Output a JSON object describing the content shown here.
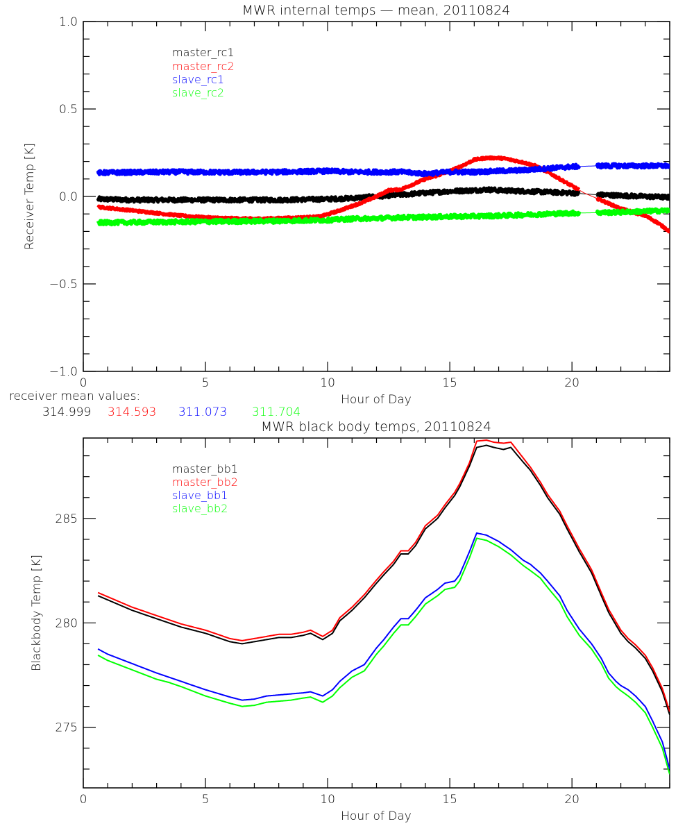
{
  "colors": {
    "black": "#000000",
    "red": "#ff0000",
    "blue": "#0000ff",
    "green": "#00ff00"
  },
  "receiver_mean": {
    "label": "receiver mean values:",
    "values": [
      {
        "text": "314.999",
        "color": "#000000"
      },
      {
        "text": "314.593",
        "color": "#ff0000"
      },
      {
        "text": "311.073",
        "color": "#0000ff"
      },
      {
        "text": "311.704",
        "color": "#00ff00"
      }
    ]
  },
  "chart_data": [
    {
      "type": "line",
      "title": "MWR internal temps — mean, 20110824",
      "xlabel": "Hour of Day",
      "ylabel": "Receiver Temp [K]",
      "xlim": [
        0,
        24
      ],
      "ylim": [
        -1.0,
        1.0
      ],
      "xticks": [
        0,
        5,
        10,
        15,
        20
      ],
      "xtick_labels": [
        "0",
        "5",
        "10",
        "15",
        "20"
      ],
      "yticks": [
        -1.0,
        -0.5,
        0.0,
        0.5,
        1.0
      ],
      "ytick_labels": [
        "−1.0",
        "−0.5",
        "0.0",
        "0.5",
        "1.0"
      ],
      "x_minor_step": 1,
      "y_minor_step": 0.1,
      "grid": false,
      "legend_position": "top-left",
      "noisy": true,
      "data_gap": [
        20.3,
        21.0
      ],
      "series": [
        {
          "name": "master_rc1",
          "color": "#000000",
          "x": [
            0.6,
            2,
            4,
            6,
            8,
            10,
            11,
            12,
            13,
            14,
            15,
            16,
            16.5,
            17,
            18,
            19,
            20,
            21,
            22,
            23,
            24
          ],
          "y": [
            -0.015,
            -0.02,
            -0.02,
            -0.02,
            -0.02,
            -0.015,
            -0.01,
            0.0,
            0.01,
            0.02,
            0.03,
            0.035,
            0.04,
            0.035,
            0.03,
            0.025,
            0.02,
            0.01,
            0.005,
            0.0,
            -0.005
          ]
        },
        {
          "name": "master_rc2",
          "color": "#ff0000",
          "x": [
            0.6,
            2,
            3,
            4,
            5,
            6,
            7,
            8,
            9,
            9.7,
            10.5,
            11,
            11.5,
            12,
            12.5,
            13,
            13.5,
            14,
            14.5,
            15,
            15.5,
            16,
            16.5,
            17,
            17.3,
            18,
            18.5,
            19,
            19.5,
            20,
            20.5,
            21,
            21.5,
            22,
            22.5,
            23,
            23.5,
            24
          ],
          "y": [
            -0.06,
            -0.08,
            -0.095,
            -0.11,
            -0.12,
            -0.125,
            -0.128,
            -0.125,
            -0.12,
            -0.115,
            -0.08,
            -0.055,
            -0.03,
            0.0,
            0.035,
            0.04,
            0.07,
            0.1,
            0.12,
            0.145,
            0.175,
            0.21,
            0.22,
            0.22,
            0.215,
            0.195,
            0.175,
            0.14,
            0.1,
            0.06,
            0.02,
            -0.01,
            -0.04,
            -0.07,
            -0.09,
            -0.11,
            -0.15,
            -0.2
          ]
        },
        {
          "name": "slave_rc1",
          "color": "#0000ff",
          "x": [
            0.6,
            2,
            4,
            6,
            8,
            10,
            11,
            12,
            13,
            14,
            15,
            16,
            17,
            18,
            19,
            20,
            21,
            22,
            23,
            24
          ],
          "y": [
            0.135,
            0.138,
            0.14,
            0.138,
            0.14,
            0.145,
            0.14,
            0.14,
            0.14,
            0.13,
            0.14,
            0.14,
            0.145,
            0.15,
            0.16,
            0.17,
            0.175,
            0.175,
            0.175,
            0.175
          ]
        },
        {
          "name": "slave_rc2",
          "color": "#00ff00",
          "x": [
            0.6,
            2,
            4,
            6,
            8,
            10,
            11,
            12,
            13,
            14,
            15,
            16,
            17,
            18,
            19,
            20,
            21,
            22,
            23,
            24
          ],
          "y": [
            -0.15,
            -0.148,
            -0.145,
            -0.143,
            -0.14,
            -0.135,
            -0.128,
            -0.125,
            -0.12,
            -0.118,
            -0.115,
            -0.113,
            -0.11,
            -0.105,
            -0.1,
            -0.095,
            -0.093,
            -0.09,
            -0.085,
            -0.08
          ]
        }
      ]
    },
    {
      "type": "line",
      "title": "MWR black body temps, 20110824",
      "xlabel": "Hour of Day",
      "ylabel": "Blackbody Temp [K]",
      "xlim": [
        0,
        24
      ],
      "ylim": [
        272.1,
        288.85
      ],
      "xticks": [
        0,
        5,
        10,
        15,
        20
      ],
      "xtick_labels": [
        "0",
        "5",
        "10",
        "15",
        "20"
      ],
      "yticks": [
        275,
        280,
        285
      ],
      "ytick_labels": [
        "275",
        "280",
        "285"
      ],
      "x_minor_step": 1,
      "y_minor_step": 1,
      "grid": false,
      "legend_position": "top-left",
      "noisy": false,
      "series": [
        {
          "name": "master_bb1",
          "color": "#000000",
          "x": [
            0.6,
            1,
            2,
            3,
            3.5,
            4,
            5,
            6,
            6.5,
            7,
            7.5,
            8,
            8.5,
            9,
            9.3,
            9.8,
            10.2,
            10.5,
            11,
            11.5,
            12,
            12.3,
            12.7,
            13,
            13.3,
            13.6,
            14,
            14.5,
            14.8,
            15.2,
            15.4,
            15.8,
            16.1,
            16.5,
            16.8,
            17.2,
            17.5,
            18,
            18.3,
            18.7,
            19,
            19.5,
            19.8,
            20.3,
            20.8,
            21.2,
            21.5,
            21.8,
            22,
            22.3,
            22.6,
            23,
            23.3,
            23.7,
            24
          ],
          "y": [
            281.3,
            281.1,
            280.6,
            280.2,
            280.0,
            279.8,
            279.5,
            279.1,
            279.0,
            279.1,
            279.2,
            279.3,
            279.3,
            279.4,
            279.5,
            279.2,
            279.5,
            280.1,
            280.6,
            281.2,
            281.9,
            282.3,
            282.8,
            283.3,
            283.3,
            283.7,
            284.5,
            285.0,
            285.5,
            286.1,
            286.5,
            287.5,
            288.4,
            288.5,
            288.4,
            288.3,
            288.4,
            287.7,
            287.3,
            286.6,
            286.0,
            285.2,
            284.5,
            283.4,
            282.4,
            281.3,
            280.5,
            279.9,
            279.5,
            279.1,
            278.8,
            278.3,
            277.7,
            276.7,
            275.6
          ]
        },
        {
          "name": "master_bb2",
          "color": "#ff0000",
          "x": [
            0.6,
            1,
            2,
            3,
            3.5,
            4,
            5,
            6,
            6.5,
            7,
            7.5,
            8,
            8.5,
            9,
            9.3,
            9.8,
            10.2,
            10.5,
            11,
            11.5,
            12,
            12.3,
            12.7,
            13,
            13.3,
            13.6,
            14,
            14.5,
            14.8,
            15.2,
            15.4,
            15.8,
            16.1,
            16.5,
            16.8,
            17.2,
            17.5,
            18,
            18.3,
            18.7,
            19,
            19.5,
            19.8,
            20.3,
            20.8,
            21.2,
            21.5,
            21.8,
            22,
            22.3,
            22.6,
            23,
            23.3,
            23.7,
            24
          ],
          "y": [
            281.45,
            281.25,
            280.75,
            280.35,
            280.15,
            279.95,
            279.65,
            279.25,
            279.15,
            279.25,
            279.35,
            279.45,
            279.45,
            279.55,
            279.65,
            279.35,
            279.65,
            280.25,
            280.75,
            281.35,
            282.05,
            282.45,
            282.95,
            283.45,
            283.45,
            283.85,
            284.65,
            285.15,
            285.65,
            286.25,
            286.65,
            287.65,
            288.7,
            288.75,
            288.65,
            288.6,
            288.65,
            287.9,
            287.45,
            286.75,
            286.15,
            285.35,
            284.65,
            283.55,
            282.55,
            281.45,
            280.65,
            280.05,
            279.65,
            279.25,
            278.95,
            278.45,
            277.85,
            276.85,
            275.75
          ]
        },
        {
          "name": "slave_bb1",
          "color": "#0000ff",
          "x": [
            0.6,
            1,
            2,
            3,
            3.5,
            4,
            5,
            6,
            6.5,
            7,
            7.5,
            8,
            8.5,
            9,
            9.3,
            9.8,
            10.2,
            10.5,
            11,
            11.5,
            12,
            12.3,
            12.7,
            13,
            13.3,
            13.6,
            14,
            14.5,
            14.8,
            15.2,
            15.4,
            15.8,
            16.1,
            16.5,
            17,
            17.5,
            18,
            18.3,
            18.7,
            19,
            19.5,
            19.8,
            20.3,
            20.8,
            21.2,
            21.5,
            21.8,
            22,
            22.3,
            22.6,
            23,
            23.3,
            23.7,
            24
          ],
          "y": [
            278.75,
            278.5,
            278.05,
            277.6,
            277.4,
            277.2,
            276.8,
            276.45,
            276.3,
            276.35,
            276.5,
            276.55,
            276.6,
            276.65,
            276.7,
            276.5,
            276.8,
            277.2,
            277.7,
            278.0,
            278.8,
            279.2,
            279.8,
            280.2,
            280.2,
            280.6,
            281.2,
            281.6,
            281.9,
            282.0,
            282.3,
            283.4,
            284.3,
            284.2,
            283.9,
            283.5,
            283.0,
            282.8,
            282.4,
            282.0,
            281.3,
            280.6,
            279.7,
            279.0,
            278.3,
            277.6,
            277.2,
            277.0,
            276.8,
            276.5,
            276.0,
            275.3,
            274.3,
            273.0
          ]
        },
        {
          "name": "slave_bb2",
          "color": "#00ff00",
          "x": [
            0.6,
            1,
            2,
            3,
            3.5,
            4,
            5,
            6,
            6.5,
            7,
            7.5,
            8,
            8.5,
            9,
            9.3,
            9.8,
            10.2,
            10.5,
            11,
            11.5,
            12,
            12.3,
            12.7,
            13,
            13.3,
            13.6,
            14,
            14.5,
            14.8,
            15.2,
            15.4,
            15.8,
            16.1,
            16.5,
            17,
            17.5,
            18,
            18.3,
            18.7,
            19,
            19.5,
            19.8,
            20.3,
            20.8,
            21.2,
            21.5,
            21.8,
            22,
            22.3,
            22.6,
            23,
            23.3,
            23.7,
            24
          ],
          "y": [
            278.45,
            278.2,
            277.75,
            277.3,
            277.15,
            276.95,
            276.5,
            276.15,
            276.0,
            276.05,
            276.2,
            276.25,
            276.3,
            276.4,
            276.45,
            276.2,
            276.5,
            276.9,
            277.4,
            277.7,
            278.5,
            278.9,
            279.5,
            279.9,
            279.9,
            280.3,
            280.9,
            281.3,
            281.6,
            281.7,
            282.0,
            283.1,
            284.05,
            283.95,
            283.65,
            283.25,
            282.75,
            282.5,
            282.15,
            281.7,
            281.0,
            280.3,
            279.4,
            278.75,
            278.05,
            277.35,
            276.95,
            276.75,
            276.5,
            276.2,
            275.7,
            275.0,
            274.0,
            272.75
          ]
        }
      ]
    }
  ]
}
